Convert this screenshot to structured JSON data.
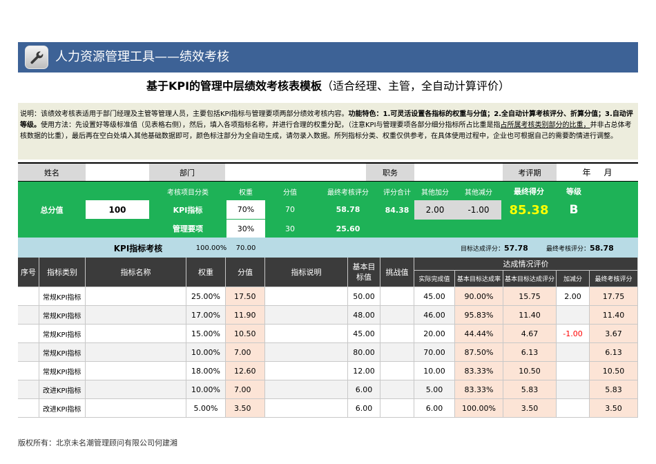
{
  "header": {
    "title": "人力资源管理工具——绩效考核",
    "icon": "wrench-icon"
  },
  "doc_title": {
    "bold": "基于KPI的管理中层绩效考核表模板",
    "normal": "（适合经理、主管，全自动计算评价）"
  },
  "description": {
    "p1": "说明：该绩效考核表适用于部门经理及主管等管理人员，主要包括KPI指标与管理要项两部分绩效考核内容。",
    "b1": "功能特色：1.可灵活设置各指标的权重与分值；2.全自动计算考核评分、折算分值；3.自动评等级。",
    "p2": "使用方法：先设置好等级标准值（见表格右侧），然后，填入各项指标名称，并进行合理的权重分配，（注意KPI与管理要项各部分细分指标所占比重是指",
    "u1": "占所属考核类别部分的比重，",
    "p3": "并非占总体考核数据的比重），最后再在空白处填入其他基础数据即可，颜色标注部分为全自动生成，请勿录入数据。所列指标分类、权重仅供参考，在具体使用过程中，企业也可根据自己的需要酌情进行调整。"
  },
  "info_row": {
    "name_label": "姓名",
    "dept_label": "部门",
    "position_label": "职务",
    "period_label": "考评期",
    "period_value": "年     月"
  },
  "summary": {
    "total_label": "总分值",
    "total_value": "100",
    "cols": [
      "考核项目分类",
      "权重",
      "分值",
      "最终考核评分",
      "评分合计",
      "其他加分",
      "其他减分",
      "最终得分",
      "等级"
    ],
    "kpi": {
      "name": "KPI指标",
      "weight": "70%",
      "score": "70",
      "final": "58.78"
    },
    "mgmt": {
      "name": "管理要项",
      "weight": "30%",
      "score": "30",
      "final": "25.60"
    },
    "sum": "84.38",
    "bonus": "2.00",
    "deduct": "-1.00",
    "final_score": "85.38",
    "grade": "B"
  },
  "kpi_section": {
    "title": "KPI指标考核",
    "weight_total": "100.00%",
    "score_total": "70.00",
    "target_label": "目标达成评分：",
    "target_value": "57.78",
    "final_label": "最终考核评分：",
    "final_value": "58.78"
  },
  "table_headers": {
    "seq": "序号",
    "category": "指标类别",
    "name": "指标名称",
    "weight": "权重",
    "score": "分值",
    "desc": "指标说明",
    "base": "基本目标值",
    "challenge": "挑战值",
    "eval": "达成情况评价",
    "sub": [
      "实际完成值",
      "基本目标达成率",
      "基本目标达成评分",
      "加减分",
      "最终考核评分"
    ]
  },
  "rows": [
    {
      "category": "常规KPI指标",
      "weight": "25.00%",
      "score": "17.50",
      "base": "50.00",
      "actual": "45.00",
      "rate": "90.00%",
      "rate_score": "15.75",
      "adj": "2.00",
      "final": "17.75"
    },
    {
      "category": "常规KPI指标",
      "weight": "17.00%",
      "score": "11.90",
      "base": "48.00",
      "actual": "46.00",
      "rate": "95.83%",
      "rate_score": "11.40",
      "adj": "",
      "final": "11.40"
    },
    {
      "category": "常规KPI指标",
      "weight": "15.00%",
      "score": "10.50",
      "base": "45.00",
      "actual": "20.00",
      "rate": "44.44%",
      "rate_score": "4.67",
      "adj": "-1.00",
      "final": "3.67"
    },
    {
      "category": "常规KPI指标",
      "weight": "10.00%",
      "score": "7.00",
      "base": "80.00",
      "actual": "70.00",
      "rate": "87.50%",
      "rate_score": "6.13",
      "adj": "",
      "final": "6.13"
    },
    {
      "category": "常规KPI指标",
      "weight": "18.00%",
      "score": "12.60",
      "base": "12.00",
      "actual": "10.00",
      "rate": "83.33%",
      "rate_score": "10.50",
      "adj": "",
      "final": "10.50"
    },
    {
      "category": "改进KPI指标",
      "weight": "10.00%",
      "score": "7.00",
      "base": "6.00",
      "actual": "5.00",
      "rate": "83.33%",
      "rate_score": "5.83",
      "adj": "",
      "final": "5.83"
    },
    {
      "category": "改进KPI指标",
      "weight": "5.00%",
      "score": "3.50",
      "base": "6.00",
      "actual": "6.00",
      "rate": "100.00%",
      "rate_score": "3.50",
      "adj": "",
      "final": "3.50"
    }
  ],
  "colors": {
    "banner": "#3d6296",
    "green": "#1eb257",
    "final_score": "#ffff00",
    "negative": "#ff0000",
    "peach": "#fce4d6",
    "desc_bg": "#ededdd"
  },
  "footer": "版权所有：北京未名潮管理顾问有限公司何建湘"
}
